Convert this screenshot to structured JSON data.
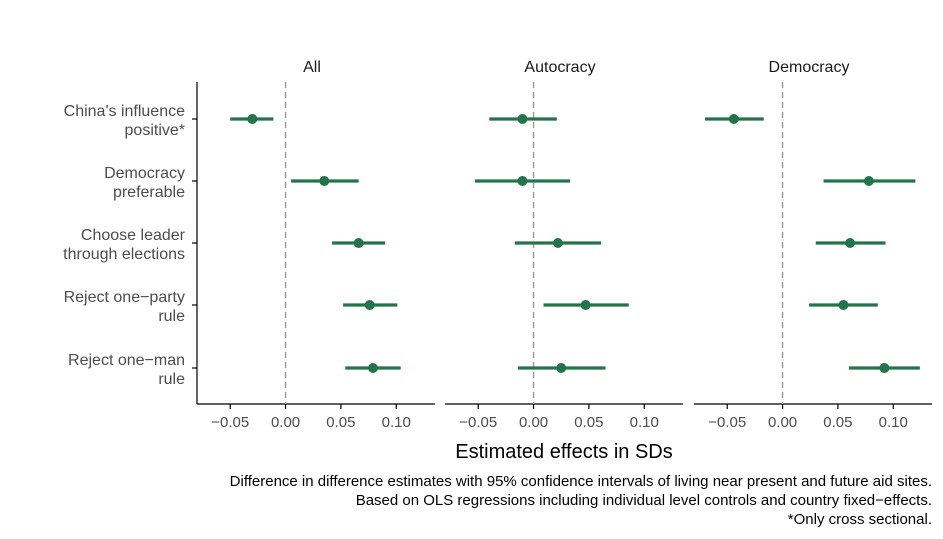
{
  "colors": {
    "point": "#23744a",
    "zero_line": "#999999",
    "axis": "#000000",
    "label_text": "#4d4d4d"
  },
  "chart_data": {
    "type": "scatter",
    "subtype": "coefficient-plot",
    "xlabel": "Estimated effects in SDs",
    "xlim": [
      -0.08,
      0.135
    ],
    "xticks": [
      -0.05,
      0.0,
      0.05,
      0.1
    ],
    "xtick_labels": [
      "−0.05",
      "0.00",
      "0.05",
      "0.10"
    ],
    "reference_line": 0,
    "categories": [
      [
        "China's influence",
        "positive*"
      ],
      [
        "Democracy",
        "preferable"
      ],
      [
        "Choose leader",
        "through elections"
      ],
      [
        "Reject one−party",
        "rule"
      ],
      [
        "Reject one−man",
        "rule"
      ]
    ],
    "panels": [
      {
        "name": "All",
        "estimates": [
          -0.03,
          0.035,
          0.066,
          0.076,
          0.079
        ],
        "ci_low": [
          -0.05,
          0.005,
          0.042,
          0.052,
          0.054
        ],
        "ci_high": [
          -0.011,
          0.066,
          0.09,
          0.101,
          0.104
        ]
      },
      {
        "name": "Autocracy",
        "estimates": [
          -0.01,
          -0.01,
          0.022,
          0.047,
          0.025
        ],
        "ci_low": [
          -0.04,
          -0.053,
          -0.017,
          0.009,
          -0.014
        ],
        "ci_high": [
          0.021,
          0.033,
          0.061,
          0.086,
          0.065
        ]
      },
      {
        "name": "Democracy",
        "estimates": [
          -0.044,
          0.078,
          0.061,
          0.055,
          0.092
        ],
        "ci_low": [
          -0.07,
          0.037,
          0.03,
          0.024,
          0.06
        ],
        "ci_high": [
          -0.017,
          0.12,
          0.093,
          0.086,
          0.124
        ]
      }
    ],
    "caption": [
      "Difference in difference estimates with 95% confidence intervals of living near present and future aid sites.",
      "Based on OLS regressions including individual level controls and country fixed−effects.",
      "*Only cross sectional."
    ],
    "grid": false
  }
}
